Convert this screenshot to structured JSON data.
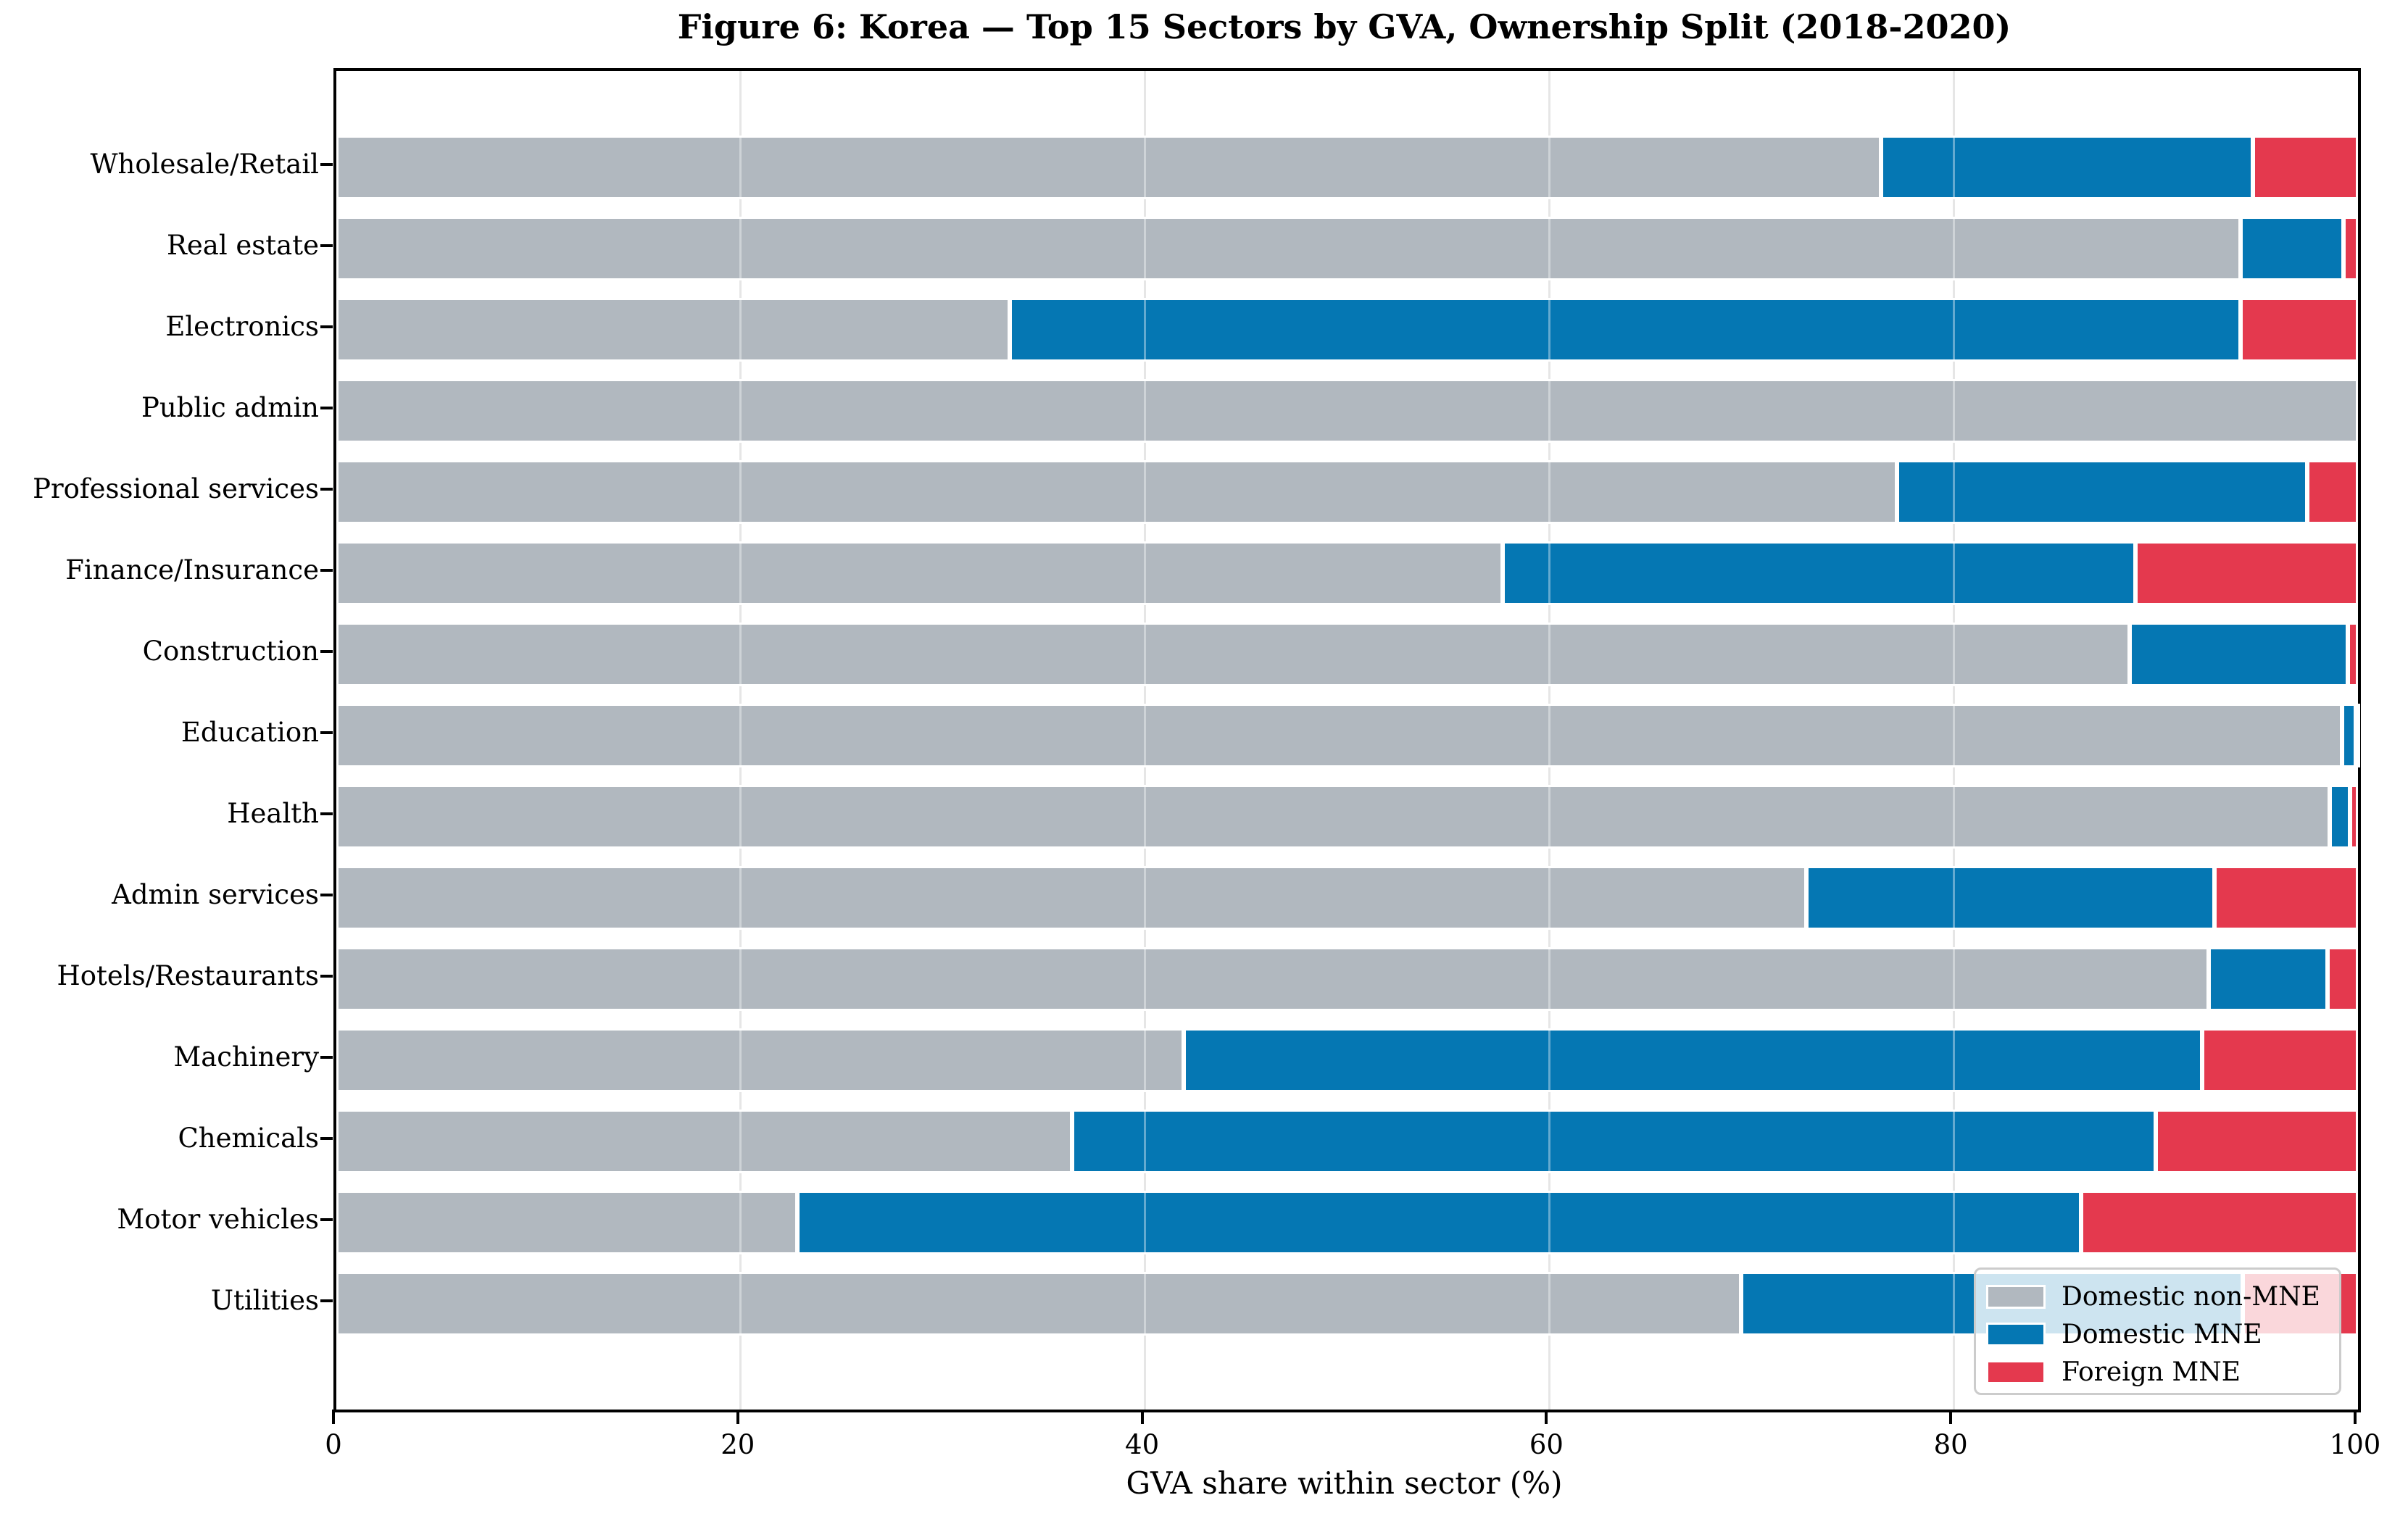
{
  "chart_data": {
    "type": "bar",
    "orientation": "horizontal",
    "stacked": true,
    "title": "Figure 6: Korea — Top 15 Sectors by GVA, Ownership Split (2018-2020)",
    "xlabel": "GVA share within sector (%)",
    "xlim": [
      0,
      100
    ],
    "xticks": [
      0,
      20,
      40,
      60,
      80,
      100
    ],
    "grid": true,
    "legend_position": "lower right",
    "categories": [
      "Wholesale/Retail",
      "Real estate",
      "Electronics",
      "Public admin",
      "Professional services",
      "Finance/Insurance",
      "Construction",
      "Education",
      "Health",
      "Admin services",
      "Hotels/Restaurants",
      "Machinery",
      "Chemicals",
      "Motor vehicles",
      "Utilities"
    ],
    "series": [
      {
        "name": "Domestic non-MNE",
        "color": "#b1b8bf",
        "values": [
          76.4,
          94.2,
          33.3,
          100.0,
          77.2,
          57.7,
          88.7,
          99.2,
          98.6,
          72.7,
          92.6,
          41.9,
          36.4,
          22.8,
          69.5
        ]
      },
      {
        "name": "Domestic MNE",
        "color": "#0577b3",
        "values": [
          18.4,
          5.1,
          60.9,
          0.0,
          20.3,
          31.3,
          10.8,
          0.7,
          1.0,
          20.2,
          5.9,
          50.4,
          53.6,
          63.5,
          24.8
        ]
      },
      {
        "name": "Foreign MNE",
        "color": "#e4394e",
        "values": [
          5.2,
          0.7,
          5.8,
          0.0,
          2.5,
          11.0,
          0.5,
          0.1,
          0.4,
          7.1,
          1.5,
          7.7,
          10.0,
          13.7,
          5.7
        ]
      }
    ]
  }
}
